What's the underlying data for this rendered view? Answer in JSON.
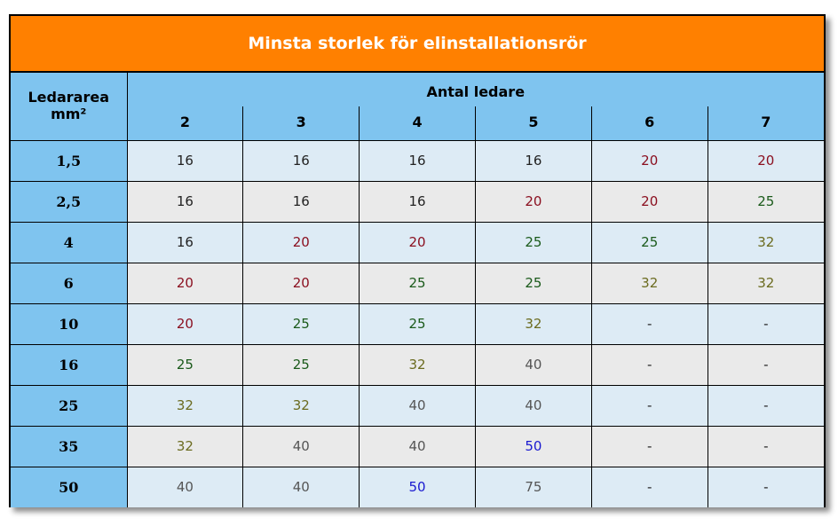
{
  "title": "Minsta storlek för elinstallationsrör",
  "header": {
    "corner_line1": "Ledararea",
    "corner_line2": "mm²",
    "group_label": "Antal ledare",
    "columns": [
      "2",
      "3",
      "4",
      "5",
      "6",
      "7"
    ]
  },
  "colors": {
    "16": "#222222",
    "20": "#8b1020",
    "25": "#1a5a1a",
    "32": "#6b6b1f",
    "40": "#555555",
    "50": "#1a1ad0",
    "75": "#555555",
    "-": "#222222"
  },
  "rows": [
    {
      "area": "1,5",
      "values": [
        "16",
        "16",
        "16",
        "16",
        "20",
        "20"
      ]
    },
    {
      "area": "2,5",
      "values": [
        "16",
        "16",
        "16",
        "20",
        "20",
        "25"
      ]
    },
    {
      "area": "4",
      "values": [
        "16",
        "20",
        "20",
        "25",
        "25",
        "32"
      ]
    },
    {
      "area": "6",
      "values": [
        "20",
        "20",
        "25",
        "25",
        "32",
        "32"
      ]
    },
    {
      "area": "10",
      "values": [
        "20",
        "25",
        "25",
        "32",
        "-",
        "-"
      ]
    },
    {
      "area": "16",
      "values": [
        "25",
        "25",
        "32",
        "40",
        "-",
        "-"
      ]
    },
    {
      "area": "25",
      "values": [
        "32",
        "32",
        "40",
        "40",
        "-",
        "-"
      ]
    },
    {
      "area": "35",
      "values": [
        "32",
        "40",
        "40",
        "50",
        "-",
        "-"
      ]
    },
    {
      "area": "50",
      "values": [
        "40",
        "40",
        "50",
        "75",
        "-",
        "-"
      ]
    }
  ]
}
